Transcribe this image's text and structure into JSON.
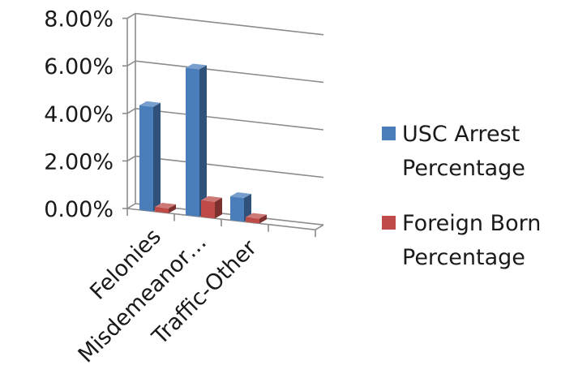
{
  "chart_data": {
    "type": "bar",
    "style": "3d-clustered-column",
    "categories": [
      "Felonies",
      "Misdemeanor…",
      "Traffic-Other"
    ],
    "series": [
      {
        "name_lines": [
          "USC Arrest",
          "Percentage"
        ],
        "color": "#4a7ebb",
        "values": [
          4.4,
          6.2,
          1.0
        ]
      },
      {
        "name_lines": [
          "Foreign Born",
          "Percentage"
        ],
        "color": "#be4b48",
        "values": [
          0.2,
          0.7,
          0.2
        ]
      }
    ],
    "y_ticks": [
      "0.00%",
      "2.00%",
      "4.00%",
      "6.00%",
      "8.00%"
    ],
    "ylim": [
      0,
      8
    ],
    "grid": true,
    "legend": "right"
  }
}
